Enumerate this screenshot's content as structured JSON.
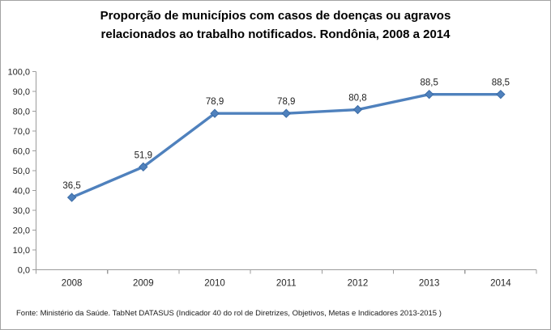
{
  "title": {
    "line1": "Proporção de municípios com casos de doenças ou agravos",
    "line2": "relacionados ao trabalho notificados. Rondônia, 2008 a 2014"
  },
  "footer": {
    "source": "Fonte: Ministério da Saúde. TabNet DATASUS (Indicador 40 do rol de Diretrizes, Objetivos, Metas e Indicadores 2013-2015 )"
  },
  "chart_data": {
    "type": "line",
    "title": "Proporção de municípios com casos de doenças ou agravos relacionados ao trabalho notificados. Rondônia, 2008 a 2014",
    "categories": [
      "2008",
      "2009",
      "2010",
      "2011",
      "2012",
      "2013",
      "2014"
    ],
    "values": [
      36.5,
      51.9,
      78.9,
      78.9,
      80.8,
      88.5,
      88.5
    ],
    "data_labels": [
      "36,5",
      "51,9",
      "78,9",
      "78,9",
      "80,8",
      "88,5",
      "88,5"
    ],
    "xlabel": "",
    "ylabel": "",
    "ylim": [
      0,
      100
    ],
    "ytick_step": 10,
    "ytick_labels": [
      "0,0",
      "10,0",
      "20,0",
      "30,0",
      "40,0",
      "50,0",
      "60,0",
      "70,0",
      "80,0",
      "90,0",
      "100,0"
    ],
    "grid": false,
    "legend": "none",
    "marker": "diamond",
    "colors": {
      "line": "#4F81BD",
      "marker": "#4F81BD",
      "marker_edge": "#3A6BA5",
      "axis": "#9c9c9c",
      "tick_text": "#262626",
      "label_text": "#1f1f1f",
      "frame_border": "#a3a3a3"
    }
  }
}
